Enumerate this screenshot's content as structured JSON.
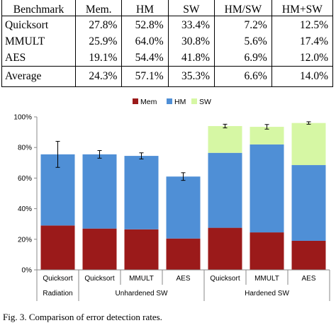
{
  "table": {
    "headers": [
      "Benchmark",
      "Mem.",
      "HM",
      "SW",
      "HM/SW",
      "HM+SW"
    ],
    "rows": [
      {
        "name": "Quicksort",
        "values": [
          "27.8%",
          "52.8%",
          "33.4%",
          "7.2%",
          "12.5%"
        ]
      },
      {
        "name": "MMULT",
        "values": [
          "25.9%",
          "64.0%",
          "30.8%",
          "5.6%",
          "17.4%"
        ]
      },
      {
        "name": "AES",
        "values": [
          "19.1%",
          "54.4%",
          "41.8%",
          "6.9%",
          "12.0%"
        ]
      }
    ],
    "average": {
      "name": "Average",
      "values": [
        "24.3%",
        "57.1%",
        "35.3%",
        "6.6%",
        "14.0%"
      ]
    }
  },
  "chart_data": {
    "type": "bar",
    "stacked": true,
    "categories": [
      "Quicksort",
      "Quicksort",
      "MMULT",
      "AES",
      "Quicksort",
      "MMULT",
      "AES"
    ],
    "groups": [
      {
        "label": "Radiation",
        "span": [
          0,
          0
        ]
      },
      {
        "label": "Unhardened SW",
        "span": [
          1,
          3
        ]
      },
      {
        "label": "Hardened SW",
        "span": [
          4,
          6
        ]
      }
    ],
    "series": [
      {
        "name": "Mem",
        "color": "#9b1a1a",
        "values": [
          29,
          27,
          26.5,
          20.5,
          27.5,
          24.5,
          19
        ]
      },
      {
        "name": "HM",
        "color": "#4f8fd6",
        "values": [
          46.5,
          48.5,
          48,
          40.5,
          49,
          57.5,
          49.5
        ]
      },
      {
        "name": "SW",
        "color": "#d6f7a4",
        "values": [
          0,
          0,
          0,
          0,
          17.5,
          11.5,
          27.5
        ]
      }
    ],
    "error": [
      8.5,
      2.5,
      2,
      2.5,
      1.2,
      1.5,
      0.8
    ],
    "ylim": [
      0,
      100
    ],
    "yticks": [
      0,
      20,
      40,
      60,
      80,
      100
    ],
    "ytick_labels": [
      "0%",
      "20%",
      "40%",
      "60%",
      "80%",
      "100%"
    ],
    "legend_position": "top-center"
  },
  "caption": "Fig. 3.   Comparison of error detection rates."
}
